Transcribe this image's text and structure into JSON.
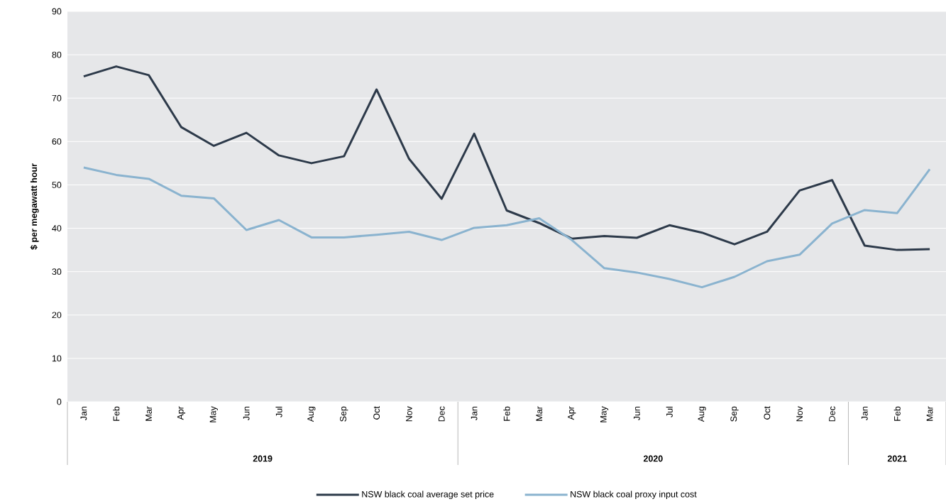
{
  "chart_data": {
    "type": "line",
    "ylabel": "$ per megawatt hour",
    "categories": [
      "Jan",
      "Feb",
      "Mar",
      "Apr",
      "May",
      "Jun",
      "Jul",
      "Aug",
      "Sep",
      "Oct",
      "Nov",
      "Dec",
      "Jan",
      "Feb",
      "Mar",
      "Apr",
      "May",
      "Jun",
      "Jul",
      "Aug",
      "Sep",
      "Oct",
      "Nov",
      "Dec",
      "Jan",
      "Feb",
      "Mar"
    ],
    "series": [
      {
        "name": "NSW black coal average set price",
        "color": "#2d3a4a",
        "values": [
          75,
          77.3,
          75.3,
          63.3,
          59,
          62,
          56.8,
          55,
          56.6,
          72,
          56,
          46.8,
          61.8,
          44.1,
          41.2,
          37.6,
          38.2,
          37.8,
          40.7,
          39,
          36.3,
          39.2,
          48.7,
          51.1,
          36,
          35,
          35.2
        ]
      },
      {
        "name": "NSW black coal proxy input cost",
        "color": "#8ab3cf",
        "values": [
          54,
          52.3,
          51.4,
          47.5,
          46.9,
          39.6,
          41.9,
          37.9,
          37.9,
          38.5,
          39.2,
          37.3,
          40.1,
          40.7,
          42.3,
          37.3,
          30.8,
          29.8,
          28.3,
          26.4,
          28.8,
          32.4,
          33.9,
          41.1,
          44.2,
          43.5,
          53.6
        ]
      }
    ],
    "annotations": [
      "2019",
      "2020",
      "2021"
    ],
    "ylim": [
      0,
      90
    ],
    "yticks": [
      0,
      10,
      20,
      30,
      40,
      50,
      60,
      70,
      80,
      90
    ],
    "grid": "y",
    "legend": "bottom",
    "marker": "none",
    "line_style": "solid"
  }
}
